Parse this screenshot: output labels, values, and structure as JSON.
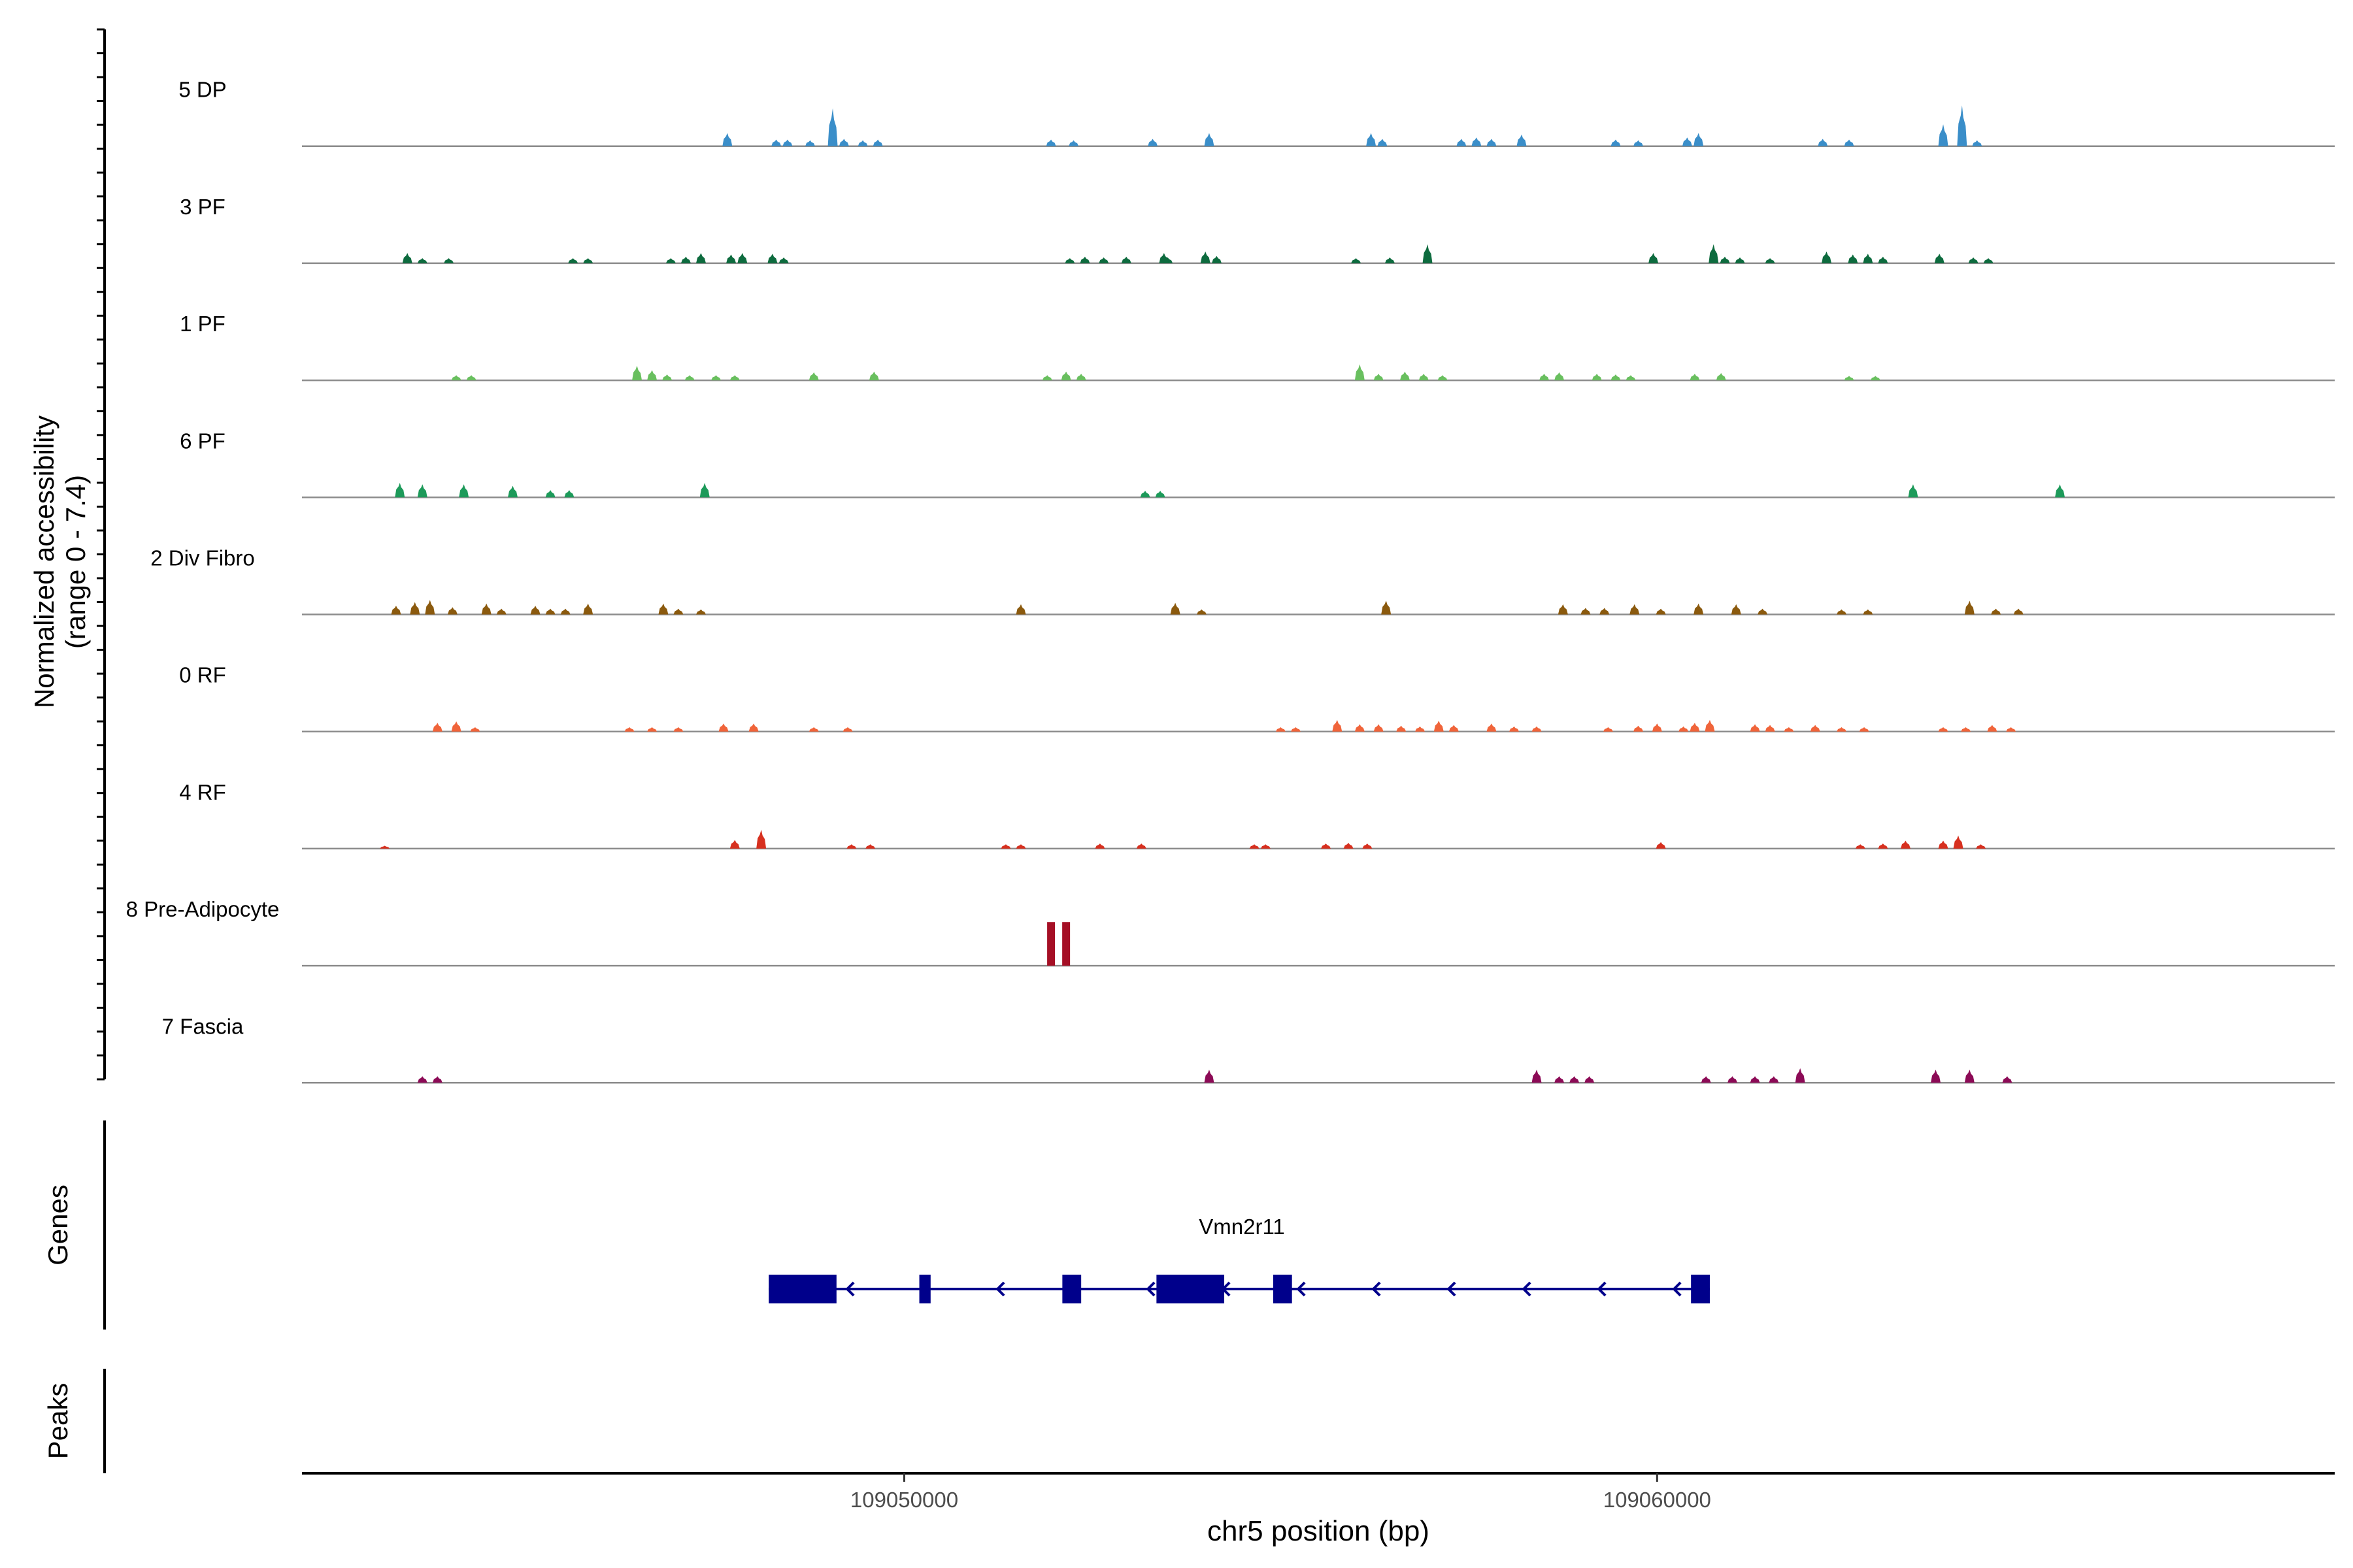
{
  "chart_data": {
    "type": "coverage-track",
    "region": {
      "chromosome": "chr5",
      "start": 109042000,
      "end": 109069000
    },
    "xlabel": "chr5 position (bp)",
    "ylabel_line1": "Normalized accessibility",
    "ylabel_line2": "(range 0 - 7.4)",
    "y_range": [
      0,
      7.4
    ],
    "x_ticks": [
      {
        "value": 109050000,
        "label": "109050000"
      },
      {
        "value": 109060000,
        "label": "109060000"
      }
    ],
    "tracks": [
      {
        "name": "5 DP",
        "color": "#3a8ec9",
        "peaks": [
          [
            109047650,
            0.9
          ],
          [
            109048300,
            0.45
          ],
          [
            109048450,
            0.45
          ],
          [
            109048750,
            0.4
          ],
          [
            109049050,
            2.6
          ],
          [
            109049200,
            0.5
          ],
          [
            109049450,
            0.4
          ],
          [
            109049650,
            0.45
          ],
          [
            109051950,
            0.45
          ],
          [
            109052250,
            0.4
          ],
          [
            109053300,
            0.5
          ],
          [
            109054050,
            0.9
          ],
          [
            109056200,
            0.9
          ],
          [
            109056350,
            0.5
          ],
          [
            109057400,
            0.5
          ],
          [
            109057600,
            0.6
          ],
          [
            109057800,
            0.5
          ],
          [
            109058200,
            0.8
          ],
          [
            109059450,
            0.45
          ],
          [
            109059750,
            0.4
          ],
          [
            109060400,
            0.6
          ],
          [
            109060550,
            0.9
          ],
          [
            109062200,
            0.5
          ],
          [
            109062550,
            0.45
          ],
          [
            109063800,
            1.5
          ],
          [
            109064050,
            2.8
          ],
          [
            109064250,
            0.4
          ]
        ]
      },
      {
        "name": "3 PF",
        "color": "#0d6b3e",
        "peaks": [
          [
            109043400,
            0.7
          ],
          [
            109043600,
            0.35
          ],
          [
            109043950,
            0.35
          ],
          [
            109045600,
            0.35
          ],
          [
            109045800,
            0.35
          ],
          [
            109046900,
            0.35
          ],
          [
            109047100,
            0.45
          ],
          [
            109047300,
            0.7
          ],
          [
            109047700,
            0.6
          ],
          [
            109047850,
            0.7
          ],
          [
            109048250,
            0.65
          ],
          [
            109048400,
            0.4
          ],
          [
            109052200,
            0.35
          ],
          [
            109052400,
            0.45
          ],
          [
            109052650,
            0.4
          ],
          [
            109052950,
            0.45
          ],
          [
            109053500,
            0.4
          ],
          [
            109053450,
            0.7
          ],
          [
            109054000,
            0.8
          ],
          [
            109054150,
            0.5
          ],
          [
            109056000,
            0.35
          ],
          [
            109056450,
            0.4
          ],
          [
            109056950,
            1.3
          ],
          [
            109059950,
            0.7
          ],
          [
            109060750,
            1.3
          ],
          [
            109060900,
            0.45
          ],
          [
            109061100,
            0.4
          ],
          [
            109061500,
            0.35
          ],
          [
            109062250,
            0.8
          ],
          [
            109062600,
            0.6
          ],
          [
            109062800,
            0.65
          ],
          [
            109063000,
            0.45
          ],
          [
            109063750,
            0.65
          ],
          [
            109064200,
            0.4
          ],
          [
            109064400,
            0.35
          ]
        ]
      },
      {
        "name": "1 PF",
        "color": "#69bf5f",
        "peaks": [
          [
            109044050,
            0.35
          ],
          [
            109044250,
            0.35
          ],
          [
            109046450,
            1.0
          ],
          [
            109046650,
            0.7
          ],
          [
            109046850,
            0.4
          ],
          [
            109047150,
            0.35
          ],
          [
            109047500,
            0.35
          ],
          [
            109047750,
            0.35
          ],
          [
            109048800,
            0.55
          ],
          [
            109049600,
            0.6
          ],
          [
            109051900,
            0.35
          ],
          [
            109052150,
            0.6
          ],
          [
            109052350,
            0.45
          ],
          [
            109056050,
            1.1
          ],
          [
            109056300,
            0.45
          ],
          [
            109056650,
            0.6
          ],
          [
            109056900,
            0.45
          ],
          [
            109057150,
            0.35
          ],
          [
            109058500,
            0.45
          ],
          [
            109058700,
            0.55
          ],
          [
            109059200,
            0.45
          ],
          [
            109059450,
            0.4
          ],
          [
            109059650,
            0.35
          ],
          [
            109060500,
            0.45
          ],
          [
            109060850,
            0.5
          ],
          [
            109062550,
            0.3
          ],
          [
            109062900,
            0.3
          ]
        ]
      },
      {
        "name": "6 PF",
        "color": "#1d9a5a",
        "peaks": [
          [
            109043300,
            1.0
          ],
          [
            109043600,
            0.9
          ],
          [
            109044150,
            0.9
          ],
          [
            109044800,
            0.8
          ],
          [
            109045300,
            0.5
          ],
          [
            109045550,
            0.5
          ],
          [
            109047350,
            1.0
          ],
          [
            109053200,
            0.45
          ],
          [
            109053400,
            0.45
          ],
          [
            109063400,
            0.9
          ],
          [
            109065350,
            0.9
          ]
        ]
      },
      {
        "name": "2 Div Fibro",
        "color": "#8b5a0e",
        "peaks": [
          [
            109043250,
            0.6
          ],
          [
            109043500,
            0.85
          ],
          [
            109043700,
            1.0
          ],
          [
            109044000,
            0.5
          ],
          [
            109044450,
            0.75
          ],
          [
            109044650,
            0.4
          ],
          [
            109045100,
            0.6
          ],
          [
            109045300,
            0.4
          ],
          [
            109045500,
            0.4
          ],
          [
            109045800,
            0.75
          ],
          [
            109046800,
            0.75
          ],
          [
            109047000,
            0.4
          ],
          [
            109047300,
            0.35
          ],
          [
            109051550,
            0.7
          ],
          [
            109053600,
            0.8
          ],
          [
            109053950,
            0.35
          ],
          [
            109056400,
            0.95
          ],
          [
            109058750,
            0.7
          ],
          [
            109059050,
            0.45
          ],
          [
            109059300,
            0.45
          ],
          [
            109059700,
            0.7
          ],
          [
            109060050,
            0.4
          ],
          [
            109060550,
            0.75
          ],
          [
            109061050,
            0.7
          ],
          [
            109061400,
            0.4
          ],
          [
            109062450,
            0.35
          ],
          [
            109062800,
            0.35
          ],
          [
            109064150,
            0.95
          ],
          [
            109064500,
            0.4
          ],
          [
            109064800,
            0.4
          ]
        ]
      },
      {
        "name": "0 RF",
        "color": "#f0643a",
        "peaks": [
          [
            109043800,
            0.6
          ],
          [
            109044050,
            0.7
          ],
          [
            109044300,
            0.3
          ],
          [
            109046350,
            0.3
          ],
          [
            109046650,
            0.3
          ],
          [
            109047000,
            0.3
          ],
          [
            109047600,
            0.55
          ],
          [
            109048000,
            0.55
          ],
          [
            109048800,
            0.3
          ],
          [
            109049250,
            0.3
          ],
          [
            109055000,
            0.3
          ],
          [
            109055200,
            0.3
          ],
          [
            109055750,
            0.8
          ],
          [
            109056050,
            0.5
          ],
          [
            109056300,
            0.5
          ],
          [
            109056600,
            0.4
          ],
          [
            109056850,
            0.35
          ],
          [
            109057100,
            0.75
          ],
          [
            109057300,
            0.45
          ],
          [
            109057800,
            0.55
          ],
          [
            109058100,
            0.35
          ],
          [
            109058400,
            0.35
          ],
          [
            109059350,
            0.3
          ],
          [
            109059750,
            0.4
          ],
          [
            109060000,
            0.55
          ],
          [
            109060350,
            0.35
          ],
          [
            109060500,
            0.6
          ],
          [
            109060700,
            0.8
          ],
          [
            109061300,
            0.5
          ],
          [
            109061500,
            0.45
          ],
          [
            109061750,
            0.3
          ],
          [
            109062100,
            0.45
          ],
          [
            109062450,
            0.3
          ],
          [
            109062750,
            0.3
          ],
          [
            109063800,
            0.3
          ],
          [
            109064100,
            0.3
          ],
          [
            109064450,
            0.45
          ],
          [
            109064700,
            0.3
          ]
        ]
      },
      {
        "name": "4 RF",
        "color": "#d7301f",
        "peaks": [
          [
            109043100,
            0.2
          ],
          [
            109047750,
            0.6
          ],
          [
            109048100,
            1.3
          ],
          [
            109049300,
            0.3
          ],
          [
            109049550,
            0.3
          ],
          [
            109051350,
            0.3
          ],
          [
            109051550,
            0.3
          ],
          [
            109052600,
            0.35
          ],
          [
            109053150,
            0.35
          ],
          [
            109054650,
            0.3
          ],
          [
            109054800,
            0.3
          ],
          [
            109055600,
            0.35
          ],
          [
            109055900,
            0.4
          ],
          [
            109056150,
            0.35
          ],
          [
            109060050,
            0.45
          ],
          [
            109062700,
            0.3
          ],
          [
            109063000,
            0.35
          ],
          [
            109063300,
            0.55
          ],
          [
            109063800,
            0.55
          ],
          [
            109064000,
            0.9
          ],
          [
            109064300,
            0.3
          ]
        ]
      },
      {
        "name": "8 Pre-Adipocyte",
        "color": "#a50f25",
        "peaks": [
          [
            109051950,
            3.0
          ],
          [
            109052150,
            3.0
          ]
        ]
      },
      {
        "name": "7 Fascia",
        "color": "#8c0a56",
        "peaks": [
          [
            109043600,
            0.45
          ],
          [
            109043800,
            0.45
          ],
          [
            109054050,
            0.9
          ],
          [
            109058400,
            0.9
          ],
          [
            109058700,
            0.45
          ],
          [
            109058900,
            0.45
          ],
          [
            109059100,
            0.45
          ],
          [
            109060650,
            0.45
          ],
          [
            109061000,
            0.45
          ],
          [
            109061300,
            0.45
          ],
          [
            109061550,
            0.45
          ],
          [
            109061900,
            1.0
          ],
          [
            109063700,
            0.9
          ],
          [
            109064150,
            0.9
          ],
          [
            109064650,
            0.45
          ]
        ]
      }
    ],
    "gene_track": {
      "label": "Genes",
      "gene": "Vmn2r11",
      "strand": "-",
      "color": "#00008b",
      "span": [
        109048200,
        109060700
      ],
      "exons": [
        [
          109048200,
          109049100
        ],
        [
          109050200,
          109050350
        ],
        [
          109052100,
          109052350
        ],
        [
          109053350,
          109054250
        ],
        [
          109054900,
          109055150
        ],
        [
          109060450,
          109060700
        ]
      ]
    },
    "peaks_track": {
      "label": "Peaks",
      "peaks": []
    }
  }
}
